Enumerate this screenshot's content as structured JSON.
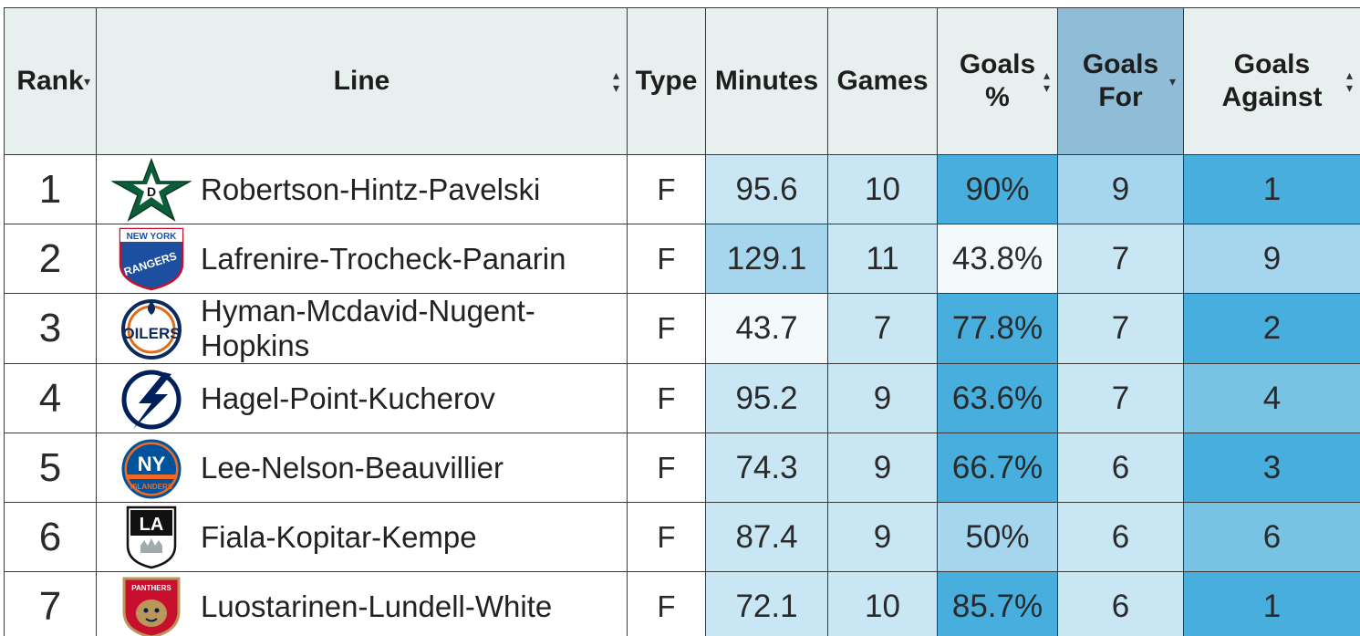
{
  "table": {
    "headers": {
      "rank": "Rank",
      "line": "Line",
      "type": "Type",
      "minutes": "Minutes",
      "games": "Games",
      "goals_pct_1": "Goals",
      "goals_pct_2": "%",
      "goals_for_1": "Goals",
      "goals_for_2": "For",
      "goals_against_1": "Goals",
      "goals_against_2": "Against"
    },
    "sorted_column": "Goals For",
    "sorted_direction": "descending",
    "rows": [
      {
        "rank": "1",
        "team_logo": "dallas-stars-logo",
        "line": "Robertson-Hintz-Pavelski",
        "type": "F",
        "minutes": "95.6",
        "games": "10",
        "goals_pct": "90%",
        "goals_for": "9",
        "goals_against": "1"
      },
      {
        "rank": "2",
        "team_logo": "new-york-rangers-logo",
        "line": "Lafrenire-Trocheck-Panarin",
        "type": "F",
        "minutes": "129.1",
        "games": "11",
        "goals_pct": "43.8%",
        "goals_for": "7",
        "goals_against": "9"
      },
      {
        "rank": "3",
        "team_logo": "edmonton-oilers-logo",
        "line_1": "Hyman-Mcdavid-Nugent-",
        "line_2": "Hopkins",
        "type": "F",
        "minutes": "43.7",
        "games": "7",
        "goals_pct": "77.8%",
        "goals_for": "7",
        "goals_against": "2"
      },
      {
        "rank": "4",
        "team_logo": "tampa-bay-lightning-logo",
        "line": "Hagel-Point-Kucherov",
        "type": "F",
        "minutes": "95.2",
        "games": "9",
        "goals_pct": "63.6%",
        "goals_for": "7",
        "goals_against": "4"
      },
      {
        "rank": "5",
        "team_logo": "new-york-islanders-logo",
        "line": "Lee-Nelson-Beauvillier",
        "type": "F",
        "minutes": "74.3",
        "games": "9",
        "goals_pct": "66.7%",
        "goals_for": "6",
        "goals_against": "3"
      },
      {
        "rank": "6",
        "team_logo": "los-angeles-kings-logo",
        "line": "Fiala-Kopitar-Kempe",
        "type": "F",
        "minutes": "87.4",
        "games": "9",
        "goals_pct": "50%",
        "goals_for": "6",
        "goals_against": "6"
      },
      {
        "rank": "7",
        "team_logo": "florida-panthers-logo",
        "line": "Luostarinen-Lundell-White",
        "type": "F",
        "minutes": "72.1",
        "games": "10",
        "goals_pct": "85.7%",
        "goals_for": "6",
        "goals_against": "1"
      }
    ],
    "logo_text": {
      "rangers_top": "NEW YORK",
      "rangers_main": "RANGERS",
      "oilers": "OILERS",
      "islanders_ny": "NY",
      "islanders_name": "ISLANDERS",
      "kings": "LA",
      "panthers": "PANTHERS"
    },
    "colors": {
      "header_bg": "#e8efef",
      "sorted_header_bg": "#8fbcd6",
      "cell_light": "#f4f9fc",
      "cell_pale": "#c9e6f5",
      "cell_mid": "#a6d5ee",
      "cell_strong": "#78c2e4",
      "cell_deep": "#47aedd"
    }
  }
}
